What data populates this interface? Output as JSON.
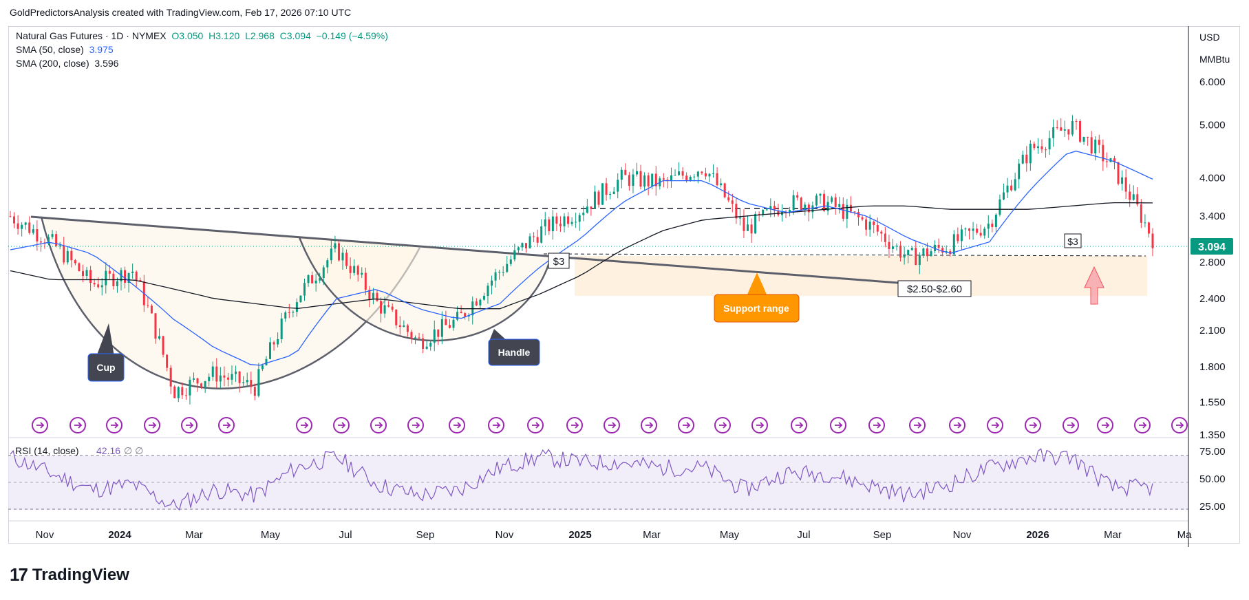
{
  "header": {
    "credit": "GoldPredictorsAnalysis created with TradingView.com, Feb 17, 2026 07:10 UTC"
  },
  "legend": {
    "symbol": "Natural Gas Futures · 1D · NYMEX",
    "open": "O3.050",
    "high": "H3.120",
    "low": "L2.968",
    "close": "C3.094",
    "change": "−0.149 (−4.59%)",
    "sma50_label": "SMA (50, close)",
    "sma50_value": "3.975",
    "sma200_label": "SMA (200, close)",
    "sma200_value": "3.596",
    "rsi_label": "RSI (14, close)",
    "rsi_value": "42.16",
    "rsi_extra": "∅  ∅"
  },
  "price_axis": {
    "currency": "USD",
    "unit": "MMBtu",
    "ticks": [
      "6.000",
      "5.000",
      "4.000",
      "3.400",
      "2.800",
      "2.400",
      "2.100",
      "1.800",
      "1.550",
      "1.350"
    ],
    "last_price": "3.094"
  },
  "rsi_axis": {
    "ticks": [
      "75.00",
      "50.00",
      "25.00"
    ]
  },
  "time_axis": {
    "labels": [
      "Nov",
      "2024",
      "Mar",
      "May",
      "Jul",
      "Sep",
      "Nov",
      "2025",
      "Mar",
      "May",
      "Jul",
      "Sep",
      "Nov",
      "2026",
      "Mar",
      "Ma"
    ]
  },
  "annotations": {
    "cup": "Cup",
    "handle": "Handle",
    "level_3_left": "$3",
    "level_3_right": "$3",
    "support_range": "Support range",
    "support_price": "$2.50-$2.60"
  },
  "colors": {
    "up": "#089981",
    "down": "#f23645",
    "sma50": "#2962ff",
    "sma200": "#131722",
    "rsi": "#7e57c2",
    "price_tag": "#089981",
    "callout_dark": "#434651",
    "callout_orange": "#ff9800"
  },
  "brand": {
    "name": "TradingView"
  },
  "chart_data": {
    "type": "line",
    "title": "Natural Gas Futures · 1D · NYMEX",
    "scale": "log",
    "ylim": [
      1.35,
      7.5
    ],
    "x": [
      "2023-10",
      "2023-11",
      "2023-12",
      "2024-01",
      "2024-02",
      "2024-03",
      "2024-04",
      "2024-05",
      "2024-06",
      "2024-07",
      "2024-08",
      "2024-09",
      "2024-10",
      "2024-11",
      "2024-12",
      "2025-01",
      "2025-02",
      "2025-03",
      "2025-04",
      "2025-05",
      "2025-06",
      "2025-07",
      "2025-08",
      "2025-09",
      "2025-10",
      "2025-11",
      "2025-12",
      "2026-01",
      "2026-02"
    ],
    "series": [
      {
        "name": "Natural Gas Futures",
        "values": [
          3.4,
          3.05,
          2.55,
          2.7,
          1.62,
          1.75,
          1.65,
          2.4,
          2.95,
          2.35,
          2.0,
          2.2,
          2.7,
          3.2,
          3.5,
          4.0,
          3.9,
          4.2,
          3.2,
          3.6,
          3.6,
          3.3,
          2.85,
          3.0,
          3.3,
          4.5,
          5.0,
          4.2,
          3.09
        ]
      },
      {
        "name": "SMA (50, close)",
        "values": [
          2.95,
          3.05,
          2.9,
          2.55,
          2.2,
          1.95,
          1.8,
          1.9,
          2.4,
          2.5,
          2.3,
          2.2,
          2.35,
          2.75,
          3.1,
          3.6,
          3.95,
          3.95,
          3.6,
          3.45,
          3.55,
          3.4,
          3.1,
          2.9,
          3.05,
          3.8,
          4.5,
          4.3,
          3.975
        ]
      },
      {
        "name": "SMA (200, close)",
        "values": [
          2.7,
          2.6,
          2.6,
          2.6,
          2.5,
          2.4,
          2.35,
          2.3,
          2.35,
          2.4,
          2.35,
          2.3,
          2.3,
          2.45,
          2.65,
          2.95,
          3.2,
          3.35,
          3.4,
          3.45,
          3.5,
          3.55,
          3.55,
          3.5,
          3.5,
          3.5,
          3.55,
          3.6,
          3.596
        ]
      }
    ],
    "rsi": {
      "name": "RSI (14, close)",
      "ylim": [
        15,
        85
      ],
      "values": [
        70,
        55,
        40,
        45,
        25,
        40,
        35,
        60,
        70,
        45,
        35,
        40,
        60,
        70,
        65,
        65,
        60,
        60,
        40,
        55,
        55,
        45,
        35,
        45,
        60,
        70,
        70,
        42,
        42.16
      ]
    }
  }
}
